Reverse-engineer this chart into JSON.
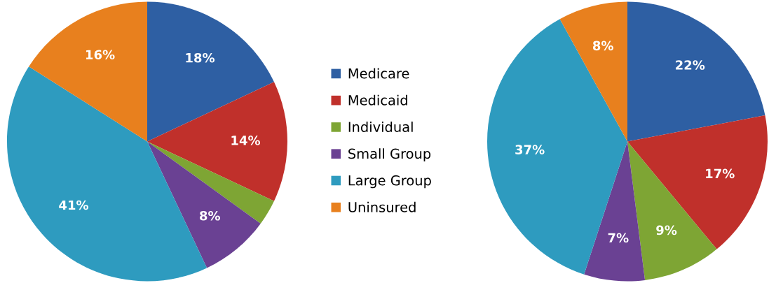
{
  "chart_data": {
    "type": "pie",
    "categories": [
      "Medicare",
      "Medicaid",
      "Individual",
      "Small Group",
      "Large Group",
      "Uninsured"
    ],
    "colors": [
      "#2e5fa3",
      "#c0302b",
      "#7ea534",
      "#6a4193",
      "#2e9bbf",
      "#e8801e"
    ],
    "legend": "right",
    "series": [
      {
        "values": [
          18,
          14,
          3,
          8,
          41,
          16
        ],
        "value_labels": [
          "18%",
          "14%",
          null,
          "8%",
          "41%",
          "16%"
        ]
      },
      {
        "values": [
          22,
          17,
          9,
          7,
          37,
          8
        ],
        "value_labels": [
          "22%",
          "17%",
          "9%",
          "7%",
          "37%",
          "8%"
        ]
      }
    ]
  }
}
